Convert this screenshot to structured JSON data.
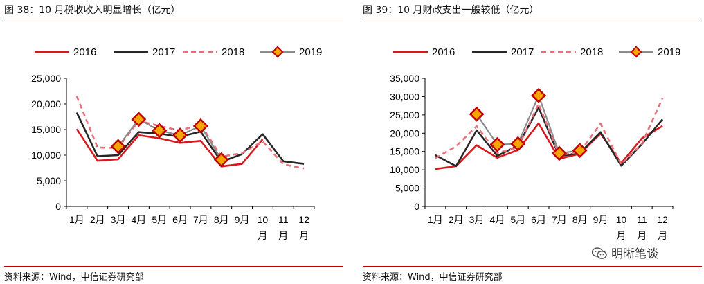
{
  "panels": [
    {
      "title": "图 38：10 月税收收入明显增长（亿元）",
      "source": "资料来源：Wind，中信证券研究部"
    },
    {
      "title": "图 39：10 月财政支出一般较低（亿元）",
      "source": "资料来源：Wind，中信证券研究部"
    }
  ],
  "watermark": {
    "text": "明晰笔谈",
    "icon": "wechat-icon"
  },
  "colors": {
    "s2016": "#d7191c",
    "s2017": "#262626",
    "s2018": "#e8707a",
    "s2019_line": "#8c8c8c",
    "s2019_marker": "#f5a400",
    "rule": "#c00000"
  },
  "chart_data": [
    {
      "type": "line",
      "categories": [
        "1月",
        "2月",
        "3月",
        "4月",
        "5月",
        "6月",
        "7月",
        "8月",
        "9月",
        "10月",
        "11月",
        "12月"
      ],
      "ylim": [
        0,
        25000
      ],
      "yticks": [
        "0",
        "5,000",
        "10,000",
        "15,000",
        "20,000",
        "25,000"
      ],
      "legend_position": "top",
      "series": [
        {
          "name": "2016",
          "values": [
            15100,
            8900,
            9200,
            13900,
            13300,
            12400,
            12800,
            7800,
            8300,
            13100,
            null,
            null
          ]
        },
        {
          "name": "2017",
          "values": [
            18300,
            9800,
            10000,
            14500,
            14200,
            13600,
            14600,
            8700,
            10200,
            14100,
            8800,
            8300
          ]
        },
        {
          "name": "2018",
          "values": [
            21500,
            11500,
            11400,
            16700,
            15700,
            14800,
            16000,
            9700,
            10400,
            12700,
            8200,
            7400
          ]
        },
        {
          "name": "2019",
          "values": [
            null,
            null,
            11700,
            17000,
            14800,
            13900,
            15700,
            9100,
            null,
            null,
            null,
            null
          ]
        }
      ]
    },
    {
      "type": "line",
      "categories": [
        "1月",
        "2月",
        "3月",
        "4月",
        "5月",
        "6月",
        "7月",
        "8月",
        "9月",
        "10月",
        "11月",
        "12月"
      ],
      "ylim": [
        0,
        35000
      ],
      "yticks": [
        "0",
        "5,000",
        "10,000",
        "15,000",
        "20,000",
        "25,000",
        "30,000",
        "35,000"
      ],
      "legend_position": "top",
      "series": [
        {
          "name": "2016",
          "values": [
            10200,
            11000,
            16700,
            13300,
            15400,
            22700,
            13000,
            14400,
            19900,
            11800,
            18600,
            22000
          ]
        },
        {
          "name": "2017",
          "values": [
            14000,
            11000,
            20800,
            13800,
            16600,
            27000,
            13700,
            14600,
            20300,
            11100,
            17000,
            23800
          ]
        },
        {
          "name": "2018",
          "values": [
            13200,
            16400,
            21900,
            14600,
            16100,
            28000,
            14000,
            14900,
            22600,
            11500,
            17100,
            29600
          ]
        },
        {
          "name": "2019",
          "values": [
            null,
            null,
            25200,
            16900,
            17100,
            30300,
            14500,
            15300,
            null,
            null,
            null,
            null
          ]
        }
      ]
    }
  ]
}
